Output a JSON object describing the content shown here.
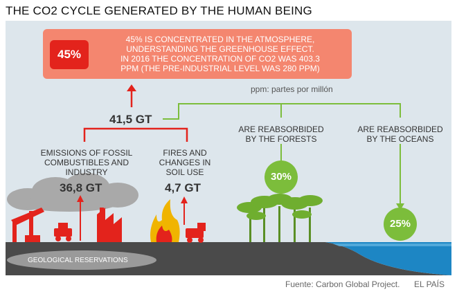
{
  "title": "THE CO2 CYCLE GENERATED BY THE HUMAN BEING",
  "callout": {
    "badge": "45%",
    "lines": [
      "45% IS CONCENTRATED IN THE ATMOSPHERE,",
      "UNDERSTANDING THE GREENHOUSE EFFECT.",
      "IN 2016 THE CONCENTRATION OF CO2 WAS 403.3",
      "PPM (THE PRE-INDUSTRIAL LEVEL WAS 280 PPM)"
    ]
  },
  "ppm_note": "ppm: partes por millón",
  "total": "41,5 GT",
  "sources": {
    "fossil": {
      "lines": [
        "EMISSIONS OF FOSSIL",
        "COMBUSTIBLES AND",
        "INDUSTRY"
      ],
      "value": "36,8 GT"
    },
    "fires": {
      "lines": [
        "FIRES AND",
        "CHANGES IN",
        "SOIL USE"
      ],
      "value": "4,7 GT"
    }
  },
  "sinks": {
    "forests": {
      "lines": [
        "ARE REABSORBIDED",
        "BY THE FORESTS"
      ],
      "value": "30%"
    },
    "oceans": {
      "lines": [
        "ARE REABSORBIDED",
        "BY THE OCEANS"
      ],
      "value": "25%"
    }
  },
  "geological": "GEOLOGICAL RESERVATIONS",
  "footer": {
    "source": "Fuente: Carbon Global Project.",
    "brand": "EL PAÍS"
  },
  "colors": {
    "red": "#e3231c",
    "salmon": "#f4866f",
    "green": "#7cbd3b",
    "sky": "#dde6ec",
    "ground": "#4a4a4a",
    "sea": "#1d86c4"
  }
}
